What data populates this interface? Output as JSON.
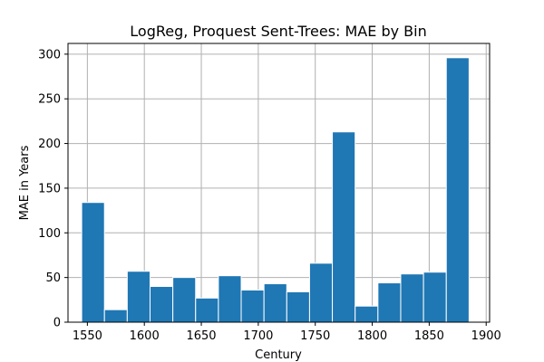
{
  "chart_data": {
    "type": "bar",
    "title": "LogReg, Proquest Sent-Trees: MAE by Bin",
    "xlabel": "Century",
    "ylabel": "MAE in Years",
    "bin_width": 20,
    "bins": [
      {
        "start": 1545,
        "value": 134
      },
      {
        "start": 1565,
        "value": 14
      },
      {
        "start": 1585,
        "value": 57
      },
      {
        "start": 1605,
        "value": 40
      },
      {
        "start": 1625,
        "value": 50
      },
      {
        "start": 1645,
        "value": 27
      },
      {
        "start": 1665,
        "value": 52
      },
      {
        "start": 1685,
        "value": 36
      },
      {
        "start": 1705,
        "value": 43
      },
      {
        "start": 1725,
        "value": 34
      },
      {
        "start": 1745,
        "value": 66
      },
      {
        "start": 1765,
        "value": 213
      },
      {
        "start": 1785,
        "value": 18
      },
      {
        "start": 1805,
        "value": 44
      },
      {
        "start": 1825,
        "value": 54
      },
      {
        "start": 1845,
        "value": 56
      },
      {
        "start": 1865,
        "value": 296
      }
    ],
    "xlim": [
      1533,
      1903
    ],
    "ylim": [
      0,
      312
    ],
    "xticks": [
      1550,
      1600,
      1650,
      1700,
      1750,
      1800,
      1850,
      1900
    ],
    "yticks": [
      0,
      50,
      100,
      150,
      200,
      250,
      300
    ],
    "grid": true,
    "bar_color": "#1f77b4"
  }
}
